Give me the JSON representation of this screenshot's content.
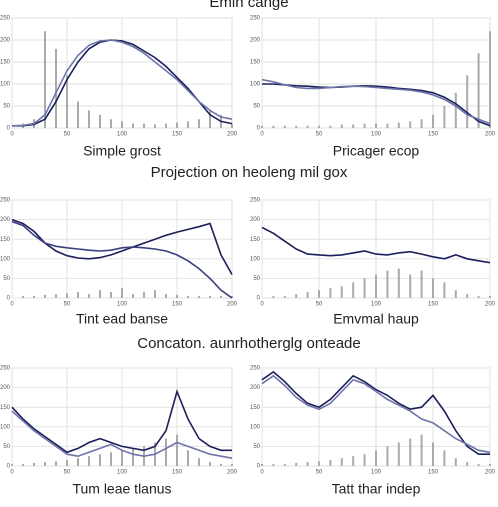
{
  "headings": [
    "Emin cange",
    "Projection on heoleng mil gox",
    "Concaton. aunrhotherglg onteade"
  ],
  "chart_data": [
    {
      "type": "line",
      "title": "Simple grost",
      "x": [
        0,
        10,
        20,
        30,
        40,
        50,
        60,
        70,
        80,
        90,
        100,
        110,
        120,
        130,
        140,
        150,
        160,
        170,
        180,
        190,
        200
      ],
      "xlim": [
        0,
        200
      ],
      "xticks": [
        0,
        50,
        100,
        150,
        200
      ],
      "ylim": [
        0,
        250
      ],
      "yticks": [
        0,
        50,
        100,
        150,
        200,
        250
      ],
      "grid": true,
      "series": [
        {
          "style": "bar",
          "color": "#aaaaaa",
          "values": [
            0,
            10,
            20,
            220,
            180,
            120,
            60,
            40,
            30,
            20,
            15,
            10,
            10,
            8,
            10,
            12,
            15,
            20,
            40,
            30,
            10
          ]
        },
        {
          "style": "line",
          "color": "#1c1f5c",
          "values": [
            5,
            5,
            8,
            20,
            60,
            110,
            150,
            180,
            195,
            200,
            198,
            190,
            175,
            160,
            140,
            115,
            90,
            60,
            30,
            15,
            10
          ]
        },
        {
          "style": "line",
          "color": "#6d74a8",
          "values": [
            5,
            6,
            10,
            30,
            80,
            130,
            165,
            188,
            198,
            200,
            195,
            185,
            170,
            150,
            130,
            110,
            85,
            60,
            40,
            25,
            20
          ]
        }
      ]
    },
    {
      "type": "line",
      "title": "Pricager ecop",
      "x": [
        0,
        10,
        20,
        30,
        40,
        50,
        60,
        70,
        80,
        90,
        100,
        110,
        120,
        130,
        140,
        150,
        160,
        170,
        180,
        190,
        200
      ],
      "xlim": [
        0,
        200
      ],
      "xticks": [
        0,
        50,
        100,
        150,
        200
      ],
      "ylim": [
        0,
        250
      ],
      "yticks": [
        0,
        50,
        100,
        150,
        200,
        250
      ],
      "grid": true,
      "series": [
        {
          "style": "bar",
          "color": "#aaaaaa",
          "values": [
            5,
            5,
            5,
            5,
            5,
            5,
            5,
            8,
            8,
            10,
            10,
            10,
            12,
            15,
            20,
            30,
            50,
            80,
            120,
            170,
            220
          ]
        },
        {
          "style": "line",
          "color": "#1c1f5c",
          "values": [
            100,
            100,
            98,
            96,
            95,
            93,
            92,
            93,
            95,
            96,
            95,
            93,
            90,
            88,
            85,
            80,
            70,
            55,
            35,
            15,
            5
          ]
        },
        {
          "style": "line",
          "color": "#6d74a8",
          "values": [
            110,
            105,
            98,
            92,
            90,
            90,
            92,
            94,
            95,
            94,
            92,
            90,
            88,
            86,
            82,
            75,
            65,
            50,
            30,
            20,
            10
          ]
        }
      ]
    },
    {
      "type": "line",
      "title": "Tint ead banse",
      "x": [
        0,
        10,
        20,
        30,
        40,
        50,
        60,
        70,
        80,
        90,
        100,
        110,
        120,
        130,
        140,
        150,
        160,
        170,
        180,
        190,
        200
      ],
      "xlim": [
        0,
        200
      ],
      "xticks": [
        0,
        50,
        100,
        150,
        200
      ],
      "ylim": [
        0,
        250
      ],
      "yticks": [
        0,
        50,
        100,
        150,
        200,
        250
      ],
      "grid": true,
      "series": [
        {
          "style": "bar",
          "color": "#aaaaaa",
          "values": [
            0,
            5,
            5,
            8,
            10,
            12,
            15,
            10,
            20,
            15,
            25,
            10,
            15,
            20,
            10,
            8,
            5,
            5,
            5,
            5,
            5
          ]
        },
        {
          "style": "line",
          "color": "#1c1f5c",
          "values": [
            200,
            190,
            170,
            140,
            120,
            108,
            102,
            100,
            103,
            110,
            120,
            130,
            140,
            150,
            160,
            168,
            175,
            182,
            190,
            110,
            60
          ]
        },
        {
          "style": "line",
          "color": "#3a3f7e",
          "values": [
            195,
            185,
            160,
            140,
            132,
            128,
            125,
            122,
            120,
            122,
            128,
            130,
            128,
            125,
            120,
            110,
            95,
            75,
            50,
            20,
            0
          ]
        }
      ]
    },
    {
      "type": "line",
      "title": "Emvmal haup",
      "x": [
        0,
        10,
        20,
        30,
        40,
        50,
        60,
        70,
        80,
        90,
        100,
        110,
        120,
        130,
        140,
        150,
        160,
        170,
        180,
        190,
        200
      ],
      "xlim": [
        0,
        200
      ],
      "xticks": [
        0,
        50,
        100,
        150,
        200
      ],
      "ylim": [
        0,
        250
      ],
      "yticks": [
        0,
        50,
        100,
        150,
        200,
        250
      ],
      "grid": true,
      "series": [
        {
          "style": "bar",
          "color": "#aaaaaa",
          "values": [
            0,
            5,
            5,
            10,
            15,
            20,
            25,
            30,
            40,
            50,
            60,
            70,
            75,
            60,
            70,
            50,
            40,
            20,
            10,
            5,
            5
          ]
        },
        {
          "style": "line",
          "color": "#1c1f5c",
          "values": [
            180,
            165,
            145,
            125,
            112,
            110,
            108,
            110,
            115,
            120,
            112,
            110,
            115,
            118,
            112,
            105,
            100,
            110,
            100,
            95,
            90
          ]
        }
      ]
    },
    {
      "type": "line",
      "title": "Tum leae tlanus",
      "x": [
        0,
        10,
        20,
        30,
        40,
        50,
        60,
        70,
        80,
        90,
        100,
        110,
        120,
        130,
        140,
        150,
        160,
        170,
        180,
        190,
        200
      ],
      "xlim": [
        0,
        200
      ],
      "xticks": [
        0,
        50,
        100,
        150,
        200
      ],
      "ylim": [
        0,
        250
      ],
      "yticks": [
        0,
        50,
        100,
        150,
        200,
        250
      ],
      "grid": true,
      "series": [
        {
          "style": "bar",
          "color": "#aaaaaa",
          "values": [
            5,
            5,
            8,
            10,
            12,
            15,
            20,
            25,
            30,
            35,
            40,
            45,
            50,
            60,
            70,
            80,
            40,
            20,
            10,
            5,
            5
          ]
        },
        {
          "style": "line",
          "color": "#1c1f5c",
          "values": [
            150,
            120,
            95,
            75,
            55,
            35,
            45,
            60,
            70,
            60,
            50,
            45,
            40,
            50,
            90,
            190,
            120,
            70,
            50,
            40,
            40
          ]
        },
        {
          "style": "line",
          "color": "#6d74a8",
          "values": [
            140,
            115,
            90,
            70,
            50,
            30,
            25,
            35,
            45,
            55,
            40,
            30,
            25,
            30,
            45,
            60,
            50,
            40,
            30,
            25,
            20
          ]
        }
      ]
    },
    {
      "type": "line",
      "title": "Tatt thar indep",
      "x": [
        0,
        10,
        20,
        30,
        40,
        50,
        60,
        70,
        80,
        90,
        100,
        110,
        120,
        130,
        140,
        150,
        160,
        170,
        180,
        190,
        200
      ],
      "xlim": [
        0,
        200
      ],
      "xticks": [
        0,
        50,
        100,
        150,
        200
      ],
      "ylim": [
        0,
        250
      ],
      "yticks": [
        0,
        50,
        100,
        150,
        200,
        250
      ],
      "grid": true,
      "series": [
        {
          "style": "bar",
          "color": "#aaaaaa",
          "values": [
            5,
            5,
            5,
            8,
            10,
            12,
            15,
            20,
            25,
            30,
            40,
            50,
            60,
            70,
            80,
            60,
            40,
            20,
            10,
            5,
            5
          ]
        },
        {
          "style": "line",
          "color": "#1c1f5c",
          "values": [
            220,
            240,
            215,
            185,
            160,
            150,
            170,
            200,
            230,
            215,
            195,
            180,
            160,
            145,
            150,
            180,
            140,
            90,
            50,
            30,
            30
          ]
        },
        {
          "style": "line",
          "color": "#6d74a8",
          "values": [
            210,
            230,
            205,
            175,
            155,
            145,
            160,
            190,
            220,
            210,
            190,
            170,
            155,
            140,
            120,
            110,
            90,
            70,
            55,
            40,
            35
          ]
        }
      ]
    }
  ]
}
